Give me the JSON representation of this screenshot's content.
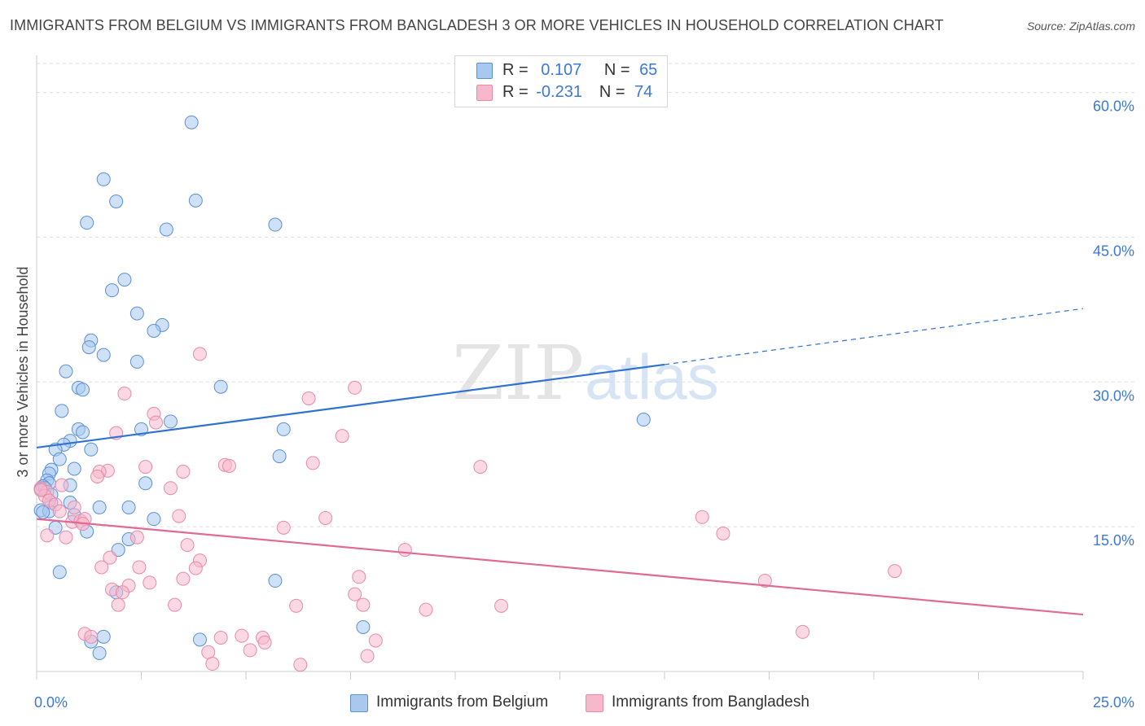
{
  "title": "IMMIGRANTS FROM BELGIUM VS IMMIGRANTS FROM BANGLADESH 3 OR MORE VEHICLES IN HOUSEHOLD CORRELATION CHART",
  "source": "Source: ZipAtlas.com",
  "watermark": {
    "zip": "ZIP",
    "atlas": "atlas"
  },
  "colors": {
    "belgium_fill": "#a8c8f0",
    "belgium_stroke": "#5b8fd6",
    "belgium_line": "#2f72d0",
    "bangladesh_fill": "#f7b8cc",
    "bangladesh_stroke": "#e88aa8",
    "bangladesh_line": "#e06a93",
    "axis_label": "#3b78d8",
    "grid": "#dddddd"
  },
  "legend": {
    "rows": [
      {
        "r_label": "R =",
        "r_value": "0.107",
        "n_label": "N =",
        "n_value": "65"
      },
      {
        "r_label": "R =",
        "r_value": "-0.231",
        "n_label": "N =",
        "n_value": "74"
      }
    ]
  },
  "bottom_legend": [
    "Immigrants from Belgium",
    "Immigrants from Bangladesh"
  ],
  "chart_data": {
    "type": "scatter",
    "title": "IMMIGRANTS FROM BELGIUM VS IMMIGRANTS FROM BANGLADESH 3 OR MORE VEHICLES IN HOUSEHOLD CORRELATION CHART",
    "xlabel": "",
    "ylabel": "3 or more Vehicles in Household",
    "x_tick_labels": [
      "0.0%",
      "25.0%"
    ],
    "y_tick_labels": [
      "15.0%",
      "30.0%",
      "45.0%",
      "60.0%"
    ],
    "xlim": [
      0,
      25
    ],
    "ylim": [
      0,
      63
    ],
    "y_gridlines": [
      15,
      30,
      45,
      60
    ],
    "legend_position": "top-center",
    "series": [
      {
        "name": "Immigrants from Belgium",
        "R": 0.107,
        "N": 65,
        "trend": {
          "x": [
            0,
            15
          ],
          "y": [
            23.2,
            31.8
          ],
          "dashed_extension_to_x": 25,
          "dashed_extension_y": 37.6
        },
        "points": [
          [
            3.7,
            56.9
          ],
          [
            1.6,
            51.0
          ],
          [
            1.9,
            48.7
          ],
          [
            3.8,
            48.8
          ],
          [
            1.2,
            46.5
          ],
          [
            3.1,
            45.8
          ],
          [
            5.7,
            46.3
          ],
          [
            2.1,
            40.6
          ],
          [
            1.8,
            39.5
          ],
          [
            2.4,
            37.1
          ],
          [
            3.0,
            35.9
          ],
          [
            2.8,
            35.3
          ],
          [
            1.3,
            34.3
          ],
          [
            1.25,
            33.6
          ],
          [
            1.6,
            32.8
          ],
          [
            2.4,
            32.1
          ],
          [
            0.7,
            31.1
          ],
          [
            1.0,
            29.4
          ],
          [
            1.1,
            29.2
          ],
          [
            4.4,
            29.5
          ],
          [
            0.6,
            27.0
          ],
          [
            3.2,
            25.9
          ],
          [
            2.5,
            25.1
          ],
          [
            1.0,
            25.1
          ],
          [
            1.1,
            24.8
          ],
          [
            0.8,
            23.9
          ],
          [
            0.65,
            23.5
          ],
          [
            1.3,
            23.0
          ],
          [
            0.45,
            23.0
          ],
          [
            0.55,
            22.0
          ],
          [
            5.9,
            25.1
          ],
          [
            5.8,
            22.3
          ],
          [
            14.5,
            26.1
          ],
          [
            0.9,
            21.0
          ],
          [
            0.35,
            20.9
          ],
          [
            0.3,
            20.5
          ],
          [
            0.25,
            19.8
          ],
          [
            0.3,
            19.5
          ],
          [
            0.15,
            19.2
          ],
          [
            0.1,
            18.9
          ],
          [
            0.2,
            19.0
          ],
          [
            0.8,
            19.3
          ],
          [
            2.6,
            19.5
          ],
          [
            0.35,
            17.5
          ],
          [
            0.8,
            17.5
          ],
          [
            1.5,
            17.0
          ],
          [
            2.2,
            17.0
          ],
          [
            0.1,
            16.7
          ],
          [
            0.3,
            16.6
          ],
          [
            0.9,
            16.2
          ],
          [
            2.8,
            15.8
          ],
          [
            0.45,
            14.9
          ],
          [
            1.2,
            14.5
          ],
          [
            2.2,
            13.7
          ],
          [
            1.95,
            12.6
          ],
          [
            0.55,
            10.3
          ],
          [
            5.7,
            9.4
          ],
          [
            1.9,
            8.2
          ],
          [
            7.8,
            4.6
          ],
          [
            1.6,
            3.6
          ],
          [
            3.9,
            3.3
          ],
          [
            1.3,
            3.1
          ],
          [
            1.5,
            1.9
          ],
          [
            0.35,
            18.3
          ],
          [
            0.15,
            16.5
          ]
        ]
      },
      {
        "name": "Immigrants from Bangladesh",
        "R": -0.231,
        "N": 74,
        "trend": {
          "x": [
            0,
            25
          ],
          "y": [
            15.8,
            5.9
          ]
        },
        "points": [
          [
            3.9,
            32.9
          ],
          [
            7.6,
            29.4
          ],
          [
            2.1,
            28.8
          ],
          [
            6.5,
            28.3
          ],
          [
            2.8,
            26.7
          ],
          [
            2.85,
            25.8
          ],
          [
            1.9,
            24.7
          ],
          [
            7.3,
            24.4
          ],
          [
            4.5,
            21.4
          ],
          [
            4.6,
            21.3
          ],
          [
            6.6,
            21.6
          ],
          [
            10.6,
            21.2
          ],
          [
            2.6,
            21.2
          ],
          [
            3.5,
            20.7
          ],
          [
            1.7,
            20.8
          ],
          [
            1.5,
            20.7
          ],
          [
            1.45,
            20.2
          ],
          [
            3.2,
            19.0
          ],
          [
            0.6,
            19.3
          ],
          [
            0.1,
            19.0
          ],
          [
            0.25,
            18.6
          ],
          [
            0.2,
            18.2
          ],
          [
            0.3,
            17.7
          ],
          [
            0.45,
            17.3
          ],
          [
            0.9,
            17.0
          ],
          [
            0.55,
            16.6
          ],
          [
            3.4,
            16.1
          ],
          [
            0.85,
            15.5
          ],
          [
            1.05,
            15.6
          ],
          [
            1.15,
            15.8
          ],
          [
            1.1,
            15.3
          ],
          [
            6.9,
            15.9
          ],
          [
            5.9,
            14.9
          ],
          [
            15.9,
            16.0
          ],
          [
            16.4,
            14.3
          ],
          [
            2.4,
            13.9
          ],
          [
            0.7,
            13.9
          ],
          [
            3.6,
            13.1
          ],
          [
            8.8,
            12.6
          ],
          [
            1.75,
            11.8
          ],
          [
            3.9,
            11.5
          ],
          [
            1.55,
            10.8
          ],
          [
            2.45,
            10.8
          ],
          [
            3.8,
            10.7
          ],
          [
            7.7,
            9.8
          ],
          [
            3.5,
            9.6
          ],
          [
            2.7,
            9.2
          ],
          [
            2.2,
            8.9
          ],
          [
            17.4,
            9.4
          ],
          [
            20.5,
            10.4
          ],
          [
            1.8,
            8.5
          ],
          [
            2.05,
            8.2
          ],
          [
            7.6,
            8.0
          ],
          [
            1.95,
            6.9
          ],
          [
            3.3,
            6.9
          ],
          [
            6.2,
            6.8
          ],
          [
            7.8,
            6.9
          ],
          [
            9.3,
            6.4
          ],
          [
            11.1,
            6.8
          ],
          [
            1.15,
            3.9
          ],
          [
            1.3,
            3.6
          ],
          [
            4.4,
            3.5
          ],
          [
            4.9,
            3.7
          ],
          [
            5.4,
            3.5
          ],
          [
            8.1,
            3.2
          ],
          [
            5.45,
            3.0
          ],
          [
            18.3,
            4.1
          ],
          [
            5.1,
            2.2
          ],
          [
            4.1,
            2.0
          ],
          [
            7.9,
            1.6
          ],
          [
            4.2,
            0.8
          ],
          [
            6.3,
            0.7
          ],
          [
            0.1,
            18.8
          ],
          [
            0.25,
            14.1
          ]
        ]
      }
    ]
  }
}
